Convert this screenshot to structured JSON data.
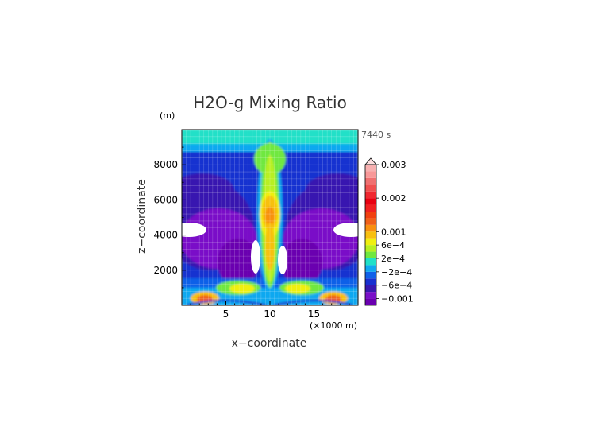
{
  "chart_data": {
    "type": "heatmap",
    "title": "H2O-g Mixing Ratio",
    "xlabel": "x−coordinate",
    "ylabel": "z−coordinate",
    "x_unit": "(×1000 m)",
    "y_unit": "(m)",
    "time_label": "7440 s",
    "xlim": [
      0,
      20
    ],
    "ylim": [
      0,
      10000
    ],
    "x_ticks": [
      5,
      10,
      15
    ],
    "y_ticks": [
      2000,
      4000,
      6000,
      8000
    ],
    "grid": true,
    "colorbar": {
      "labels": [
        {
          "text": "0.003",
          "value": 0.003
        },
        {
          "text": "0.002",
          "value": 0.002
        },
        {
          "text": "0.001",
          "value": 0.001
        },
        {
          "text": "6e−4",
          "value": 0.0006
        },
        {
          "text": "2e−4",
          "value": 0.0002
        },
        {
          "text": "−2e−4",
          "value": -0.0002
        },
        {
          "text": "−6e−4",
          "value": -0.0006
        },
        {
          "text": "−0.001",
          "value": -0.001
        }
      ],
      "levels": [
        {
          "low": -0.0012,
          "high": -0.001,
          "color": "#6a00b0"
        },
        {
          "low": -0.001,
          "high": -0.0008,
          "color": "#7a10c8"
        },
        {
          "low": -0.0008,
          "high": -0.0006,
          "color": "#3818b0"
        },
        {
          "low": -0.0006,
          "high": -0.0004,
          "color": "#1830d0"
        },
        {
          "low": -0.0004,
          "high": -0.0002,
          "color": "#1060e8"
        },
        {
          "low": -0.0002,
          "high": 0.0,
          "color": "#10a8f0"
        },
        {
          "low": 0.0,
          "high": 0.0002,
          "color": "#20e0c8"
        },
        {
          "low": 0.0002,
          "high": 0.0004,
          "color": "#70e840"
        },
        {
          "low": 0.0004,
          "high": 0.0006,
          "color": "#b8f020"
        },
        {
          "low": 0.0006,
          "high": 0.0008,
          "color": "#f0f010"
        },
        {
          "low": 0.0008,
          "high": 0.001,
          "color": "#f8c010"
        },
        {
          "low": 0.001,
          "high": 0.0012,
          "color": "#f89010"
        },
        {
          "low": 0.0012,
          "high": 0.0014,
          "color": "#f06018"
        },
        {
          "low": 0.0014,
          "high": 0.0016,
          "color": "#f04010"
        },
        {
          "low": 0.0016,
          "high": 0.0018,
          "color": "#f02020"
        },
        {
          "low": 0.0018,
          "high": 0.002,
          "color": "#e80010"
        },
        {
          "low": 0.002,
          "high": 0.0022,
          "color": "#f02830"
        },
        {
          "low": 0.0022,
          "high": 0.0024,
          "color": "#f05050"
        },
        {
          "low": 0.0024,
          "high": 0.0026,
          "color": "#f07070"
        },
        {
          "low": 0.0026,
          "high": 0.0028,
          "color": "#f89898"
        },
        {
          "low": 0.0028,
          "high": 0.003,
          "color": "#f8b0b0"
        }
      ],
      "overflow_color": "#fce0e0",
      "undefined_color": "#ffffff"
    }
  }
}
